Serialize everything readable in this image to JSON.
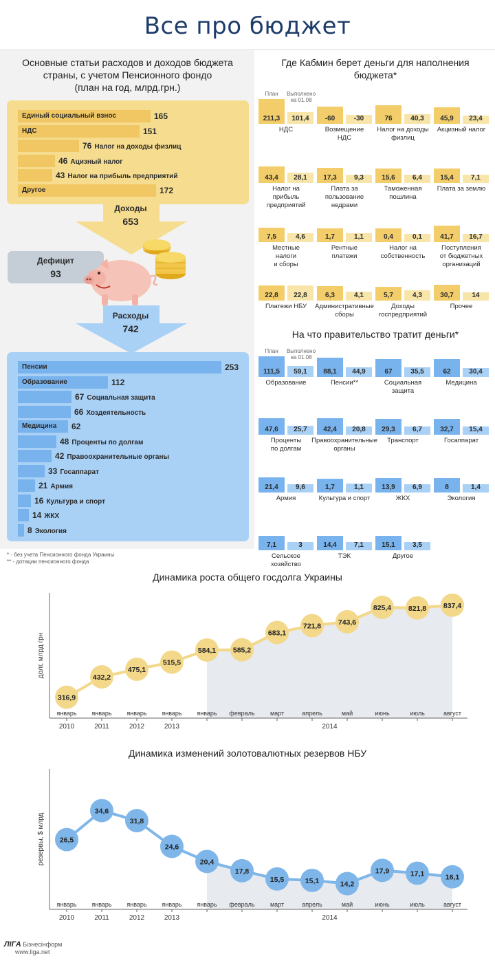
{
  "page_title": "Все про бюджет",
  "budget": {
    "title_lines": [
      "Основные статьи расходов и доходов бюджета",
      "страны, с учетом Пенсионного фондо",
      "(план на год, млрд.грн.)"
    ],
    "income_total_label": "Доходы",
    "income_total": "653",
    "deficit_label": "Дефицит",
    "deficit_value": "93",
    "expense_total_label": "Расходы",
    "expense_total": "742",
    "income_items": [
      {
        "label": "Единый социальный взнос",
        "value": 165
      },
      {
        "label": "НДС",
        "value": 151
      },
      {
        "label": "Налог на доходы физлиц",
        "value": 76
      },
      {
        "label": "Ацизный налог",
        "value": 46
      },
      {
        "label": "Налог на прибыль предприятий",
        "value": 43
      },
      {
        "label": "Другое",
        "value": 172
      }
    ],
    "expense_items": [
      {
        "label": "Пенсии",
        "value": 253
      },
      {
        "label": "Образование",
        "value": 112
      },
      {
        "label": "Социальная защита",
        "value": 67
      },
      {
        "label": "Хоздеятельность",
        "value": 66
      },
      {
        "label": "Медицина",
        "value": 62
      },
      {
        "label": "Проценты по долгам",
        "value": 48
      },
      {
        "label": "Правоохранительные органы",
        "value": 42
      },
      {
        "label": "Госаппарат",
        "value": 33
      },
      {
        "label": "Армия",
        "value": 21
      },
      {
        "label": "Культура и спорт",
        "value": 16
      },
      {
        "label": "ЖКХ",
        "value": 14
      },
      {
        "label": "Экология",
        "value": 8
      }
    ],
    "footnotes": [
      "* - без учета Пенсионного фонда Украины",
      "** - дотации пенсионного фонда"
    ]
  },
  "revenue": {
    "title_lines": [
      "Где Кабмин берет деньги для наполнения",
      "бюджета*"
    ],
    "plan_label": "План",
    "done_label_lines": [
      "Выполнено",
      "на 01.08"
    ],
    "items": [
      {
        "plan": "211,3",
        "done": "101,4",
        "caption": [
          "НДС"
        ]
      },
      {
        "plan": "-60",
        "done": "-30",
        "caption": [
          "Возмещение",
          "НДС"
        ]
      },
      {
        "plan": "76",
        "done": "40,3",
        "caption": [
          "Налог на доходы",
          "физлиц"
        ]
      },
      {
        "plan": "45,9",
        "done": "23,4",
        "caption": [
          "Акцизный налог"
        ]
      },
      {
        "plan": "43,4",
        "done": "28,1",
        "caption": [
          "Налог на",
          "прибыль",
          "предприятий"
        ]
      },
      {
        "plan": "17,3",
        "done": "9,3",
        "caption": [
          "Плата за",
          "пользование",
          "недрами"
        ]
      },
      {
        "plan": "15,6",
        "done": "6,4",
        "caption": [
          "Таможенная",
          "пошлина"
        ]
      },
      {
        "plan": "15,4",
        "done": "7,1",
        "caption": [
          "Плата за землю"
        ]
      },
      {
        "plan": "7,5",
        "done": "4,6",
        "caption": [
          "Местные",
          "налоги",
          "и сборы"
        ]
      },
      {
        "plan": "1,7",
        "done": "1,1",
        "caption": [
          "Рентные",
          "платежи"
        ]
      },
      {
        "plan": "0,4",
        "done": "0,1",
        "caption": [
          "Налог на",
          "собственность"
        ]
      },
      {
        "plan": "41,7",
        "done": "16,7",
        "caption": [
          "Поступления",
          "от бюджетных",
          "организаций"
        ]
      },
      {
        "plan": "22,8",
        "done": "22,8",
        "caption": [
          "Платежи НБУ"
        ]
      },
      {
        "plan": "6,3",
        "done": "4,1",
        "caption": [
          "Административные",
          "сборы"
        ]
      },
      {
        "plan": "5,7",
        "done": "4,3",
        "caption": [
          "Доходы",
          "госпредприятий"
        ]
      },
      {
        "plan": "30,7",
        "done": "14",
        "caption": [
          "Прочее"
        ]
      }
    ]
  },
  "spending": {
    "title_lines": [
      "На что правительство тратит деньги*"
    ],
    "plan_label": "План",
    "done_label_lines": [
      "Выполнено",
      "на 01.08"
    ],
    "items": [
      {
        "plan": "111,5",
        "done": "59,1",
        "caption": [
          "Образование"
        ]
      },
      {
        "plan": "88,1",
        "done": "44,9",
        "caption": [
          "Пенсии**"
        ]
      },
      {
        "plan": "67",
        "done": "35,5",
        "caption": [
          "Социальная",
          "защита"
        ]
      },
      {
        "plan": "62",
        "done": "30,4",
        "caption": [
          "Медицина"
        ]
      },
      {
        "plan": "47,6",
        "done": "25,7",
        "caption": [
          "Проценты",
          "по долгам"
        ]
      },
      {
        "plan": "42,4",
        "done": "20,8",
        "caption": [
          "Правоохранительные",
          "органы"
        ]
      },
      {
        "plan": "29,3",
        "done": "6,7",
        "caption": [
          "Транспорт"
        ]
      },
      {
        "plan": "32,7",
        "done": "15,4",
        "caption": [
          "Госаппарат"
        ]
      },
      {
        "plan": "21,4",
        "done": "9,6",
        "caption": [
          "Армия"
        ]
      },
      {
        "plan": "1,7",
        "done": "1,1",
        "caption": [
          "Культура и спорт"
        ]
      },
      {
        "plan": "13,9",
        "done": "6,9",
        "caption": [
          "ЖКХ"
        ]
      },
      {
        "plan": "8",
        "done": "1,4",
        "caption": [
          "Экология"
        ]
      },
      {
        "plan": "7,1",
        "done": "3",
        "caption": [
          "Сельское",
          "хозяйство"
        ]
      },
      {
        "plan": "14,4",
        "done": "7,1",
        "caption": [
          "ТЭК"
        ]
      },
      {
        "plan": "15,1",
        "done": "3,5",
        "caption": [
          "Другое"
        ]
      }
    ]
  },
  "chart_data": [
    {
      "type": "line",
      "title": "Динамика роста общего госдолга Украины",
      "ylabel": "долг, млрд грн",
      "categories": [
        "январь",
        "январь",
        "январь",
        "январь",
        "январь",
        "февраль",
        "март",
        "апрель",
        "май",
        "июнь",
        "июль",
        "август"
      ],
      "year_labels": [
        "2010",
        "2011",
        "2012",
        "2013",
        "2014"
      ],
      "values": [
        316.9,
        432.2,
        475.1,
        515.5,
        584.1,
        585.2,
        683.1,
        721.8,
        743.6,
        825.4,
        821.8,
        837.4
      ],
      "value_labels": [
        "316,9",
        "432,2",
        "475,1",
        "515,5",
        "584,1",
        "585,2",
        "683,1",
        "721,8",
        "743,6",
        "825,4",
        "821,8",
        "837,4"
      ],
      "ylim": [
        300,
        860
      ],
      "grid": false,
      "color": "#f3d88a"
    },
    {
      "type": "line",
      "title": "Динамика изменений золотовалютных резервов НБУ",
      "ylabel": "резервы, $ млрд",
      "categories": [
        "январь",
        "январь",
        "январь",
        "январь",
        "январь",
        "февраль",
        "март",
        "апрель",
        "май",
        "июнь",
        "июль",
        "август"
      ],
      "year_labels": [
        "2010",
        "2011",
        "2012",
        "2013",
        "2014"
      ],
      "values": [
        26.5,
        34.6,
        31.8,
        24.6,
        20.4,
        17.8,
        15.5,
        15.1,
        14.2,
        17.9,
        17.1,
        16.1
      ],
      "value_labels": [
        "26,5",
        "34,6",
        "31,8",
        "24,6",
        "20,4",
        "17,8",
        "15,5",
        "15,1",
        "14,2",
        "17,9",
        "17,1",
        "16,1"
      ],
      "ylim": [
        12,
        37
      ],
      "grid": false,
      "color": "#7fb6ea"
    }
  ],
  "logo": {
    "brand": "ЛІГА",
    "name": "Бізнесінформ",
    "url": "www.liga.net"
  }
}
